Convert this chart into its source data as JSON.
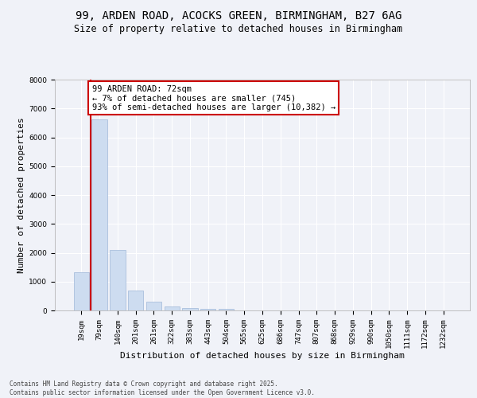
{
  "title_line1": "99, ARDEN ROAD, ACOCKS GREEN, BIRMINGHAM, B27 6AG",
  "title_line2": "Size of property relative to detached houses in Birmingham",
  "xlabel": "Distribution of detached houses by size in Birmingham",
  "ylabel": "Number of detached properties",
  "categories": [
    "19sqm",
    "79sqm",
    "140sqm",
    "201sqm",
    "261sqm",
    "322sqm",
    "383sqm",
    "443sqm",
    "504sqm",
    "565sqm",
    "625sqm",
    "686sqm",
    "747sqm",
    "807sqm",
    "868sqm",
    "929sqm",
    "990sqm",
    "1050sqm",
    "1111sqm",
    "1172sqm",
    "1232sqm"
  ],
  "values": [
    1320,
    6620,
    2100,
    680,
    310,
    130,
    80,
    50,
    50,
    0,
    0,
    0,
    0,
    0,
    0,
    0,
    0,
    0,
    0,
    0,
    0
  ],
  "bar_color": "#cddcf0",
  "bar_edge_color": "#9fb8d8",
  "vline_pos": 0.5,
  "vline_color": "#cc0000",
  "annotation_text": "99 ARDEN ROAD: 72sqm\n← 7% of detached houses are smaller (745)\n93% of semi-detached houses are larger (10,382) →",
  "annotation_box_facecolor": "#ffffff",
  "annotation_box_edgecolor": "#cc0000",
  "ylim": [
    0,
    8000
  ],
  "yticks": [
    0,
    1000,
    2000,
    3000,
    4000,
    5000,
    6000,
    7000,
    8000
  ],
  "footer_line1": "Contains HM Land Registry data © Crown copyright and database right 2025.",
  "footer_line2": "Contains public sector information licensed under the Open Government Licence v3.0.",
  "bg_color": "#f0f2f8",
  "title1_fontsize": 10,
  "title2_fontsize": 8.5,
  "ylabel_fontsize": 8,
  "xlabel_fontsize": 8,
  "tick_fontsize": 6.5,
  "annot_fontsize": 7.5,
  "footer_fontsize": 5.5
}
